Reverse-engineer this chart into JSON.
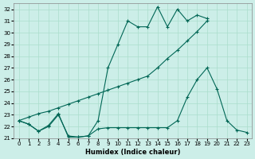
{
  "xlabel": "Humidex (Indice chaleur)",
  "bg_color": "#cceee8",
  "grid_color": "#aaddcc",
  "line_color": "#006655",
  "ylim": [
    21,
    32.5
  ],
  "xlim": [
    -0.5,
    23.5
  ],
  "yticks": [
    21,
    22,
    23,
    24,
    25,
    26,
    27,
    28,
    29,
    30,
    31,
    32
  ],
  "x_ticks": [
    0,
    1,
    2,
    3,
    4,
    5,
    6,
    7,
    8,
    9,
    10,
    11,
    12,
    13,
    14,
    15,
    16,
    17,
    18,
    19,
    20,
    21,
    22,
    23
  ],
  "line1_x": [
    0,
    1,
    2,
    3,
    4,
    5,
    6,
    7,
    8,
    9,
    10,
    11,
    12,
    13,
    14,
    15,
    16,
    17,
    18,
    19
  ],
  "line1_y": [
    22.5,
    22.2,
    21.6,
    22.1,
    23.1,
    21.1,
    21.1,
    21.2,
    22.5,
    27.0,
    29.0,
    31.0,
    30.5,
    30.5,
    32.2,
    30.5,
    32.0,
    31.0,
    31.5,
    31.2
  ],
  "line2_x": [
    0,
    1,
    2,
    3,
    4,
    5,
    6,
    7,
    8,
    9,
    10,
    11,
    12,
    13,
    14,
    15,
    16,
    17,
    18,
    19
  ],
  "line2_y": [
    22.5,
    22.8,
    23.1,
    23.3,
    23.6,
    23.9,
    24.2,
    24.5,
    24.8,
    25.1,
    25.4,
    25.7,
    26.0,
    26.3,
    27.0,
    27.8,
    28.5,
    29.3,
    30.1,
    31.0
  ],
  "line3_x": [
    0,
    1,
    2,
    3,
    4,
    5,
    6,
    7,
    8,
    9,
    10,
    11,
    12,
    13,
    14,
    15,
    16,
    17,
    18,
    19,
    20,
    21,
    22,
    23
  ],
  "line3_y": [
    22.5,
    22.2,
    21.6,
    22.0,
    23.0,
    21.2,
    21.1,
    21.2,
    21.8,
    21.9,
    21.9,
    21.9,
    21.9,
    21.9,
    21.9,
    21.9,
    22.5,
    24.5,
    26.0,
    27.0,
    25.2,
    22.5,
    21.7,
    21.5
  ]
}
